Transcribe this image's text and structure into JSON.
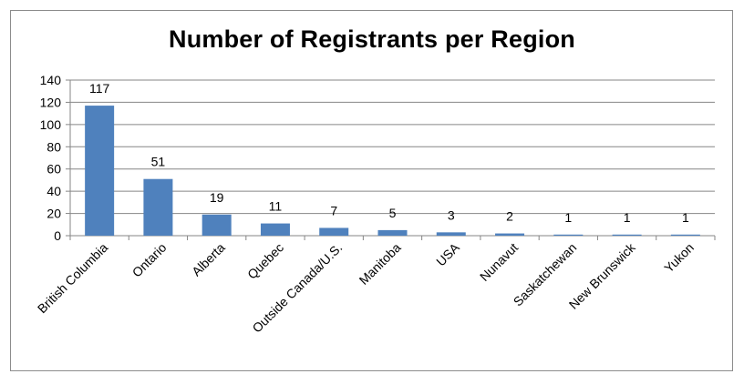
{
  "chart_data": {
    "type": "bar",
    "title": "Number of Registrants per Region",
    "xlabel": "",
    "ylabel": "",
    "categories": [
      "British Columbia",
      "Ontario",
      "Alberta",
      "Quebec",
      "Outside Canada/U.S.",
      "Manitoba",
      "USA",
      "Nunavut",
      "Saskatchewan",
      "New Brunswick",
      "Yukon"
    ],
    "values": [
      117,
      51,
      19,
      11,
      7,
      5,
      3,
      2,
      1,
      1,
      1
    ],
    "data_labels": [
      "117",
      "51",
      "19",
      "11",
      "7",
      "5",
      "3",
      "2",
      "1",
      "1",
      "1"
    ],
    "ylim": [
      0,
      140
    ],
    "yticks": [
      "0",
      "20",
      "40",
      "60",
      "80",
      "100",
      "120",
      "140"
    ],
    "grid": true,
    "legend": "none",
    "bar_color": "#4f81bd",
    "grid_color": "#868686"
  }
}
